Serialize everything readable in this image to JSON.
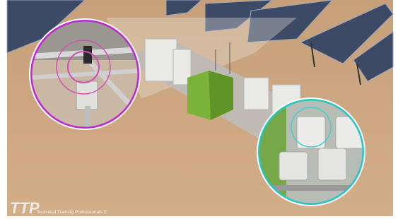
{
  "logo": {
    "mark": "TTP",
    "text": "Technical Training Professionals ©"
  }
}
